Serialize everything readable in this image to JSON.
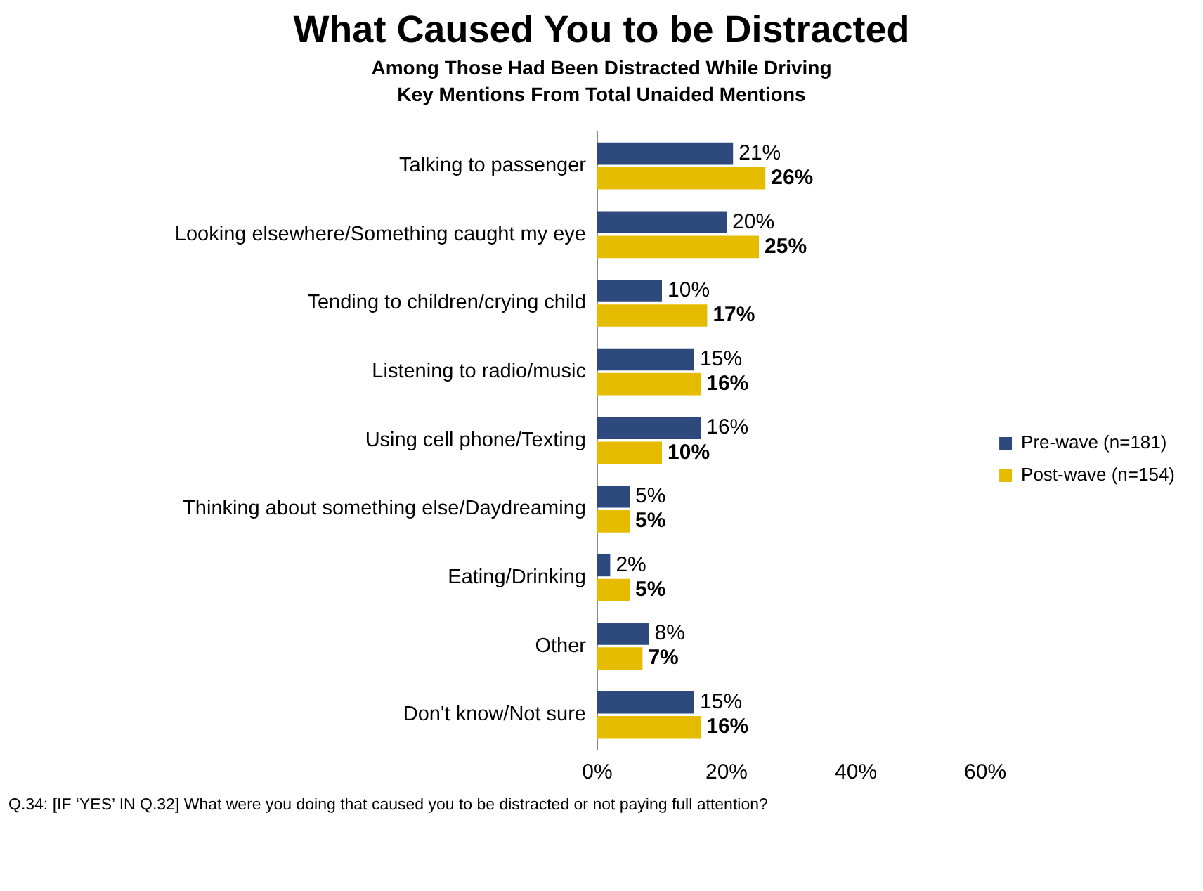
{
  "chart_data": {
    "type": "bar",
    "orientation": "horizontal",
    "title": "What Caused You to be Distracted",
    "subtitle": "Among Those Had Been Distracted While Driving\nKey Mentions From Total Unaided Mentions",
    "categories": [
      "Talking to passenger",
      "Looking elsewhere/Something caught my eye",
      "Tending to children/crying child",
      "Listening to radio/music",
      "Using cell phone/Texting",
      "Thinking about something else/Daydreaming",
      "Eating/Drinking",
      "Other",
      "Don't know/Not sure"
    ],
    "series": [
      {
        "name": "Pre-wave (n=181)",
        "color": "#2e4a7c",
        "values": [
          21,
          20,
          10,
          15,
          16,
          5,
          2,
          8,
          15
        ],
        "value_labels": [
          "21%",
          "20%",
          "10%",
          "15%",
          "16%",
          "5%",
          "2%",
          "8%",
          "15%"
        ]
      },
      {
        "name": "Post-wave (n=154)",
        "color": "#e6bc00",
        "values": [
          26,
          25,
          17,
          16,
          10,
          5,
          5,
          7,
          16
        ],
        "value_labels": [
          "26%",
          "25%",
          "17%",
          "16%",
          "10%",
          "5%",
          "5%",
          "7%",
          "16%"
        ]
      }
    ],
    "xlim": [
      0,
      60
    ],
    "xticks": [
      {
        "value": 0,
        "label": "0%"
      },
      {
        "value": 20,
        "label": "20%"
      },
      {
        "value": 40,
        "label": "40%"
      },
      {
        "value": 60,
        "label": "60%"
      }
    ],
    "grid": false,
    "legend": "right",
    "annotations": [
      "Q.34: [IF ‘YES’ IN Q.32] What were you doing that caused you to be distracted or not paying full attention?"
    ]
  }
}
